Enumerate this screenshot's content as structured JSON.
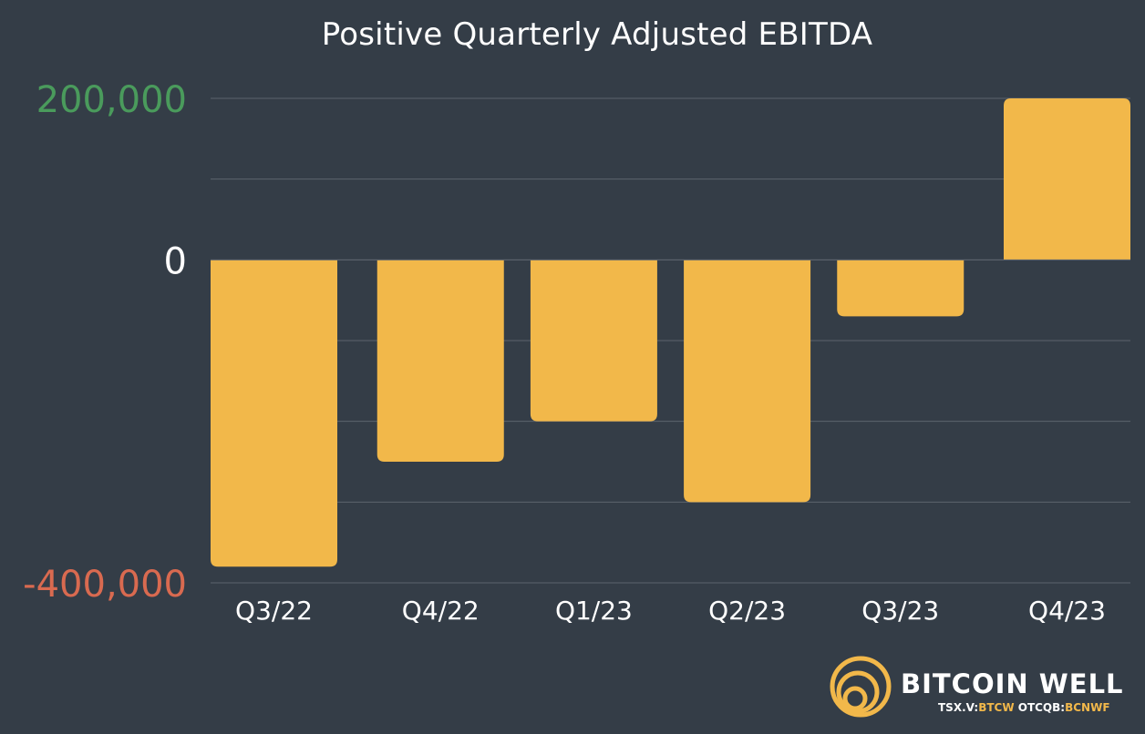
{
  "chart_data": {
    "type": "bar",
    "title": "Positive Quarterly Adjusted EBITDA",
    "categories": [
      "Q3/22",
      "Q4/22",
      "Q1/23",
      "Q2/23",
      "Q3/23",
      "Q4/23"
    ],
    "values": [
      -380000,
      -250000,
      -200000,
      -300000,
      -70000,
      200000
    ],
    "ylim": [
      -400000,
      200000
    ],
    "gridlines": [
      200000,
      100000,
      0,
      -100000,
      -200000,
      -300000,
      -400000
    ],
    "yticks": [
      {
        "value": 200000,
        "label": "200,000",
        "color": "#4a9b5c"
      },
      {
        "value": 0,
        "label": "0",
        "color": "#ffffff"
      },
      {
        "value": -400000,
        "label": "-400,000",
        "color": "#d96a50"
      }
    ],
    "bar_color": "#f2b84a",
    "grid": true,
    "legend": false
  },
  "brand": {
    "name": "BITCOIN WELL",
    "ticker_prefix_1": "TSX.V:",
    "ticker_1": "BTCW",
    "ticker_prefix_2": " OTCQB:",
    "ticker_2": "BCNWF",
    "logo_icon": "concentric-rings-logo-icon"
  },
  "colors": {
    "background": "#343d47",
    "grid": "#5c646d",
    "text": "#ffffff",
    "accent": "#f2b84a"
  }
}
